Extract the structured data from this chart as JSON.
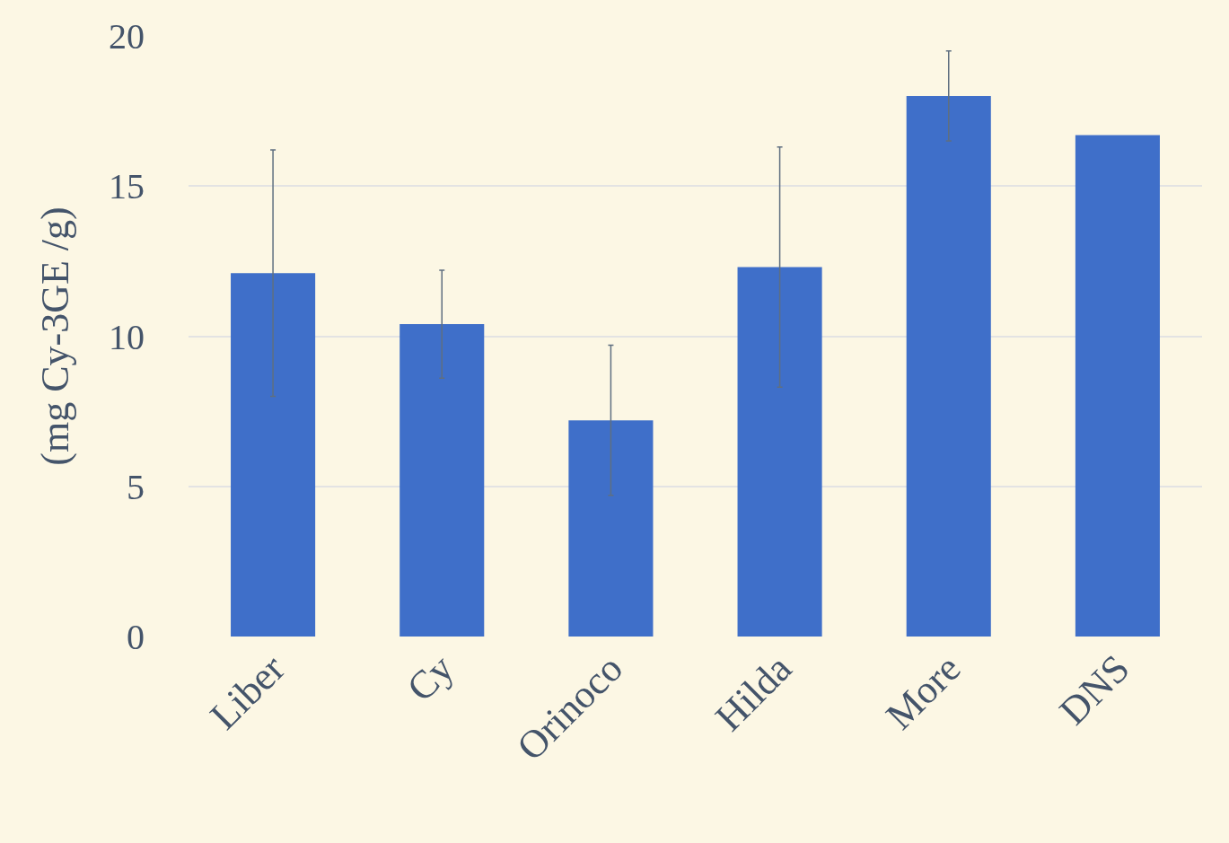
{
  "chart_data": {
    "type": "bar",
    "ylabel": "(mg Cy-3GE /g)",
    "categories": [
      "Liber",
      "Cy",
      "Orinoco",
      "Hilda",
      "More",
      "DNS"
    ],
    "values": [
      12.1,
      10.4,
      7.2,
      12.3,
      18.0,
      16.7
    ],
    "errors": [
      4.1,
      1.8,
      2.5,
      4.0,
      1.5,
      null
    ],
    "color": "#3f6fc9",
    "ylim": [
      0,
      20
    ],
    "yticks": [
      0,
      5,
      10,
      15,
      20
    ],
    "grid": "y"
  }
}
